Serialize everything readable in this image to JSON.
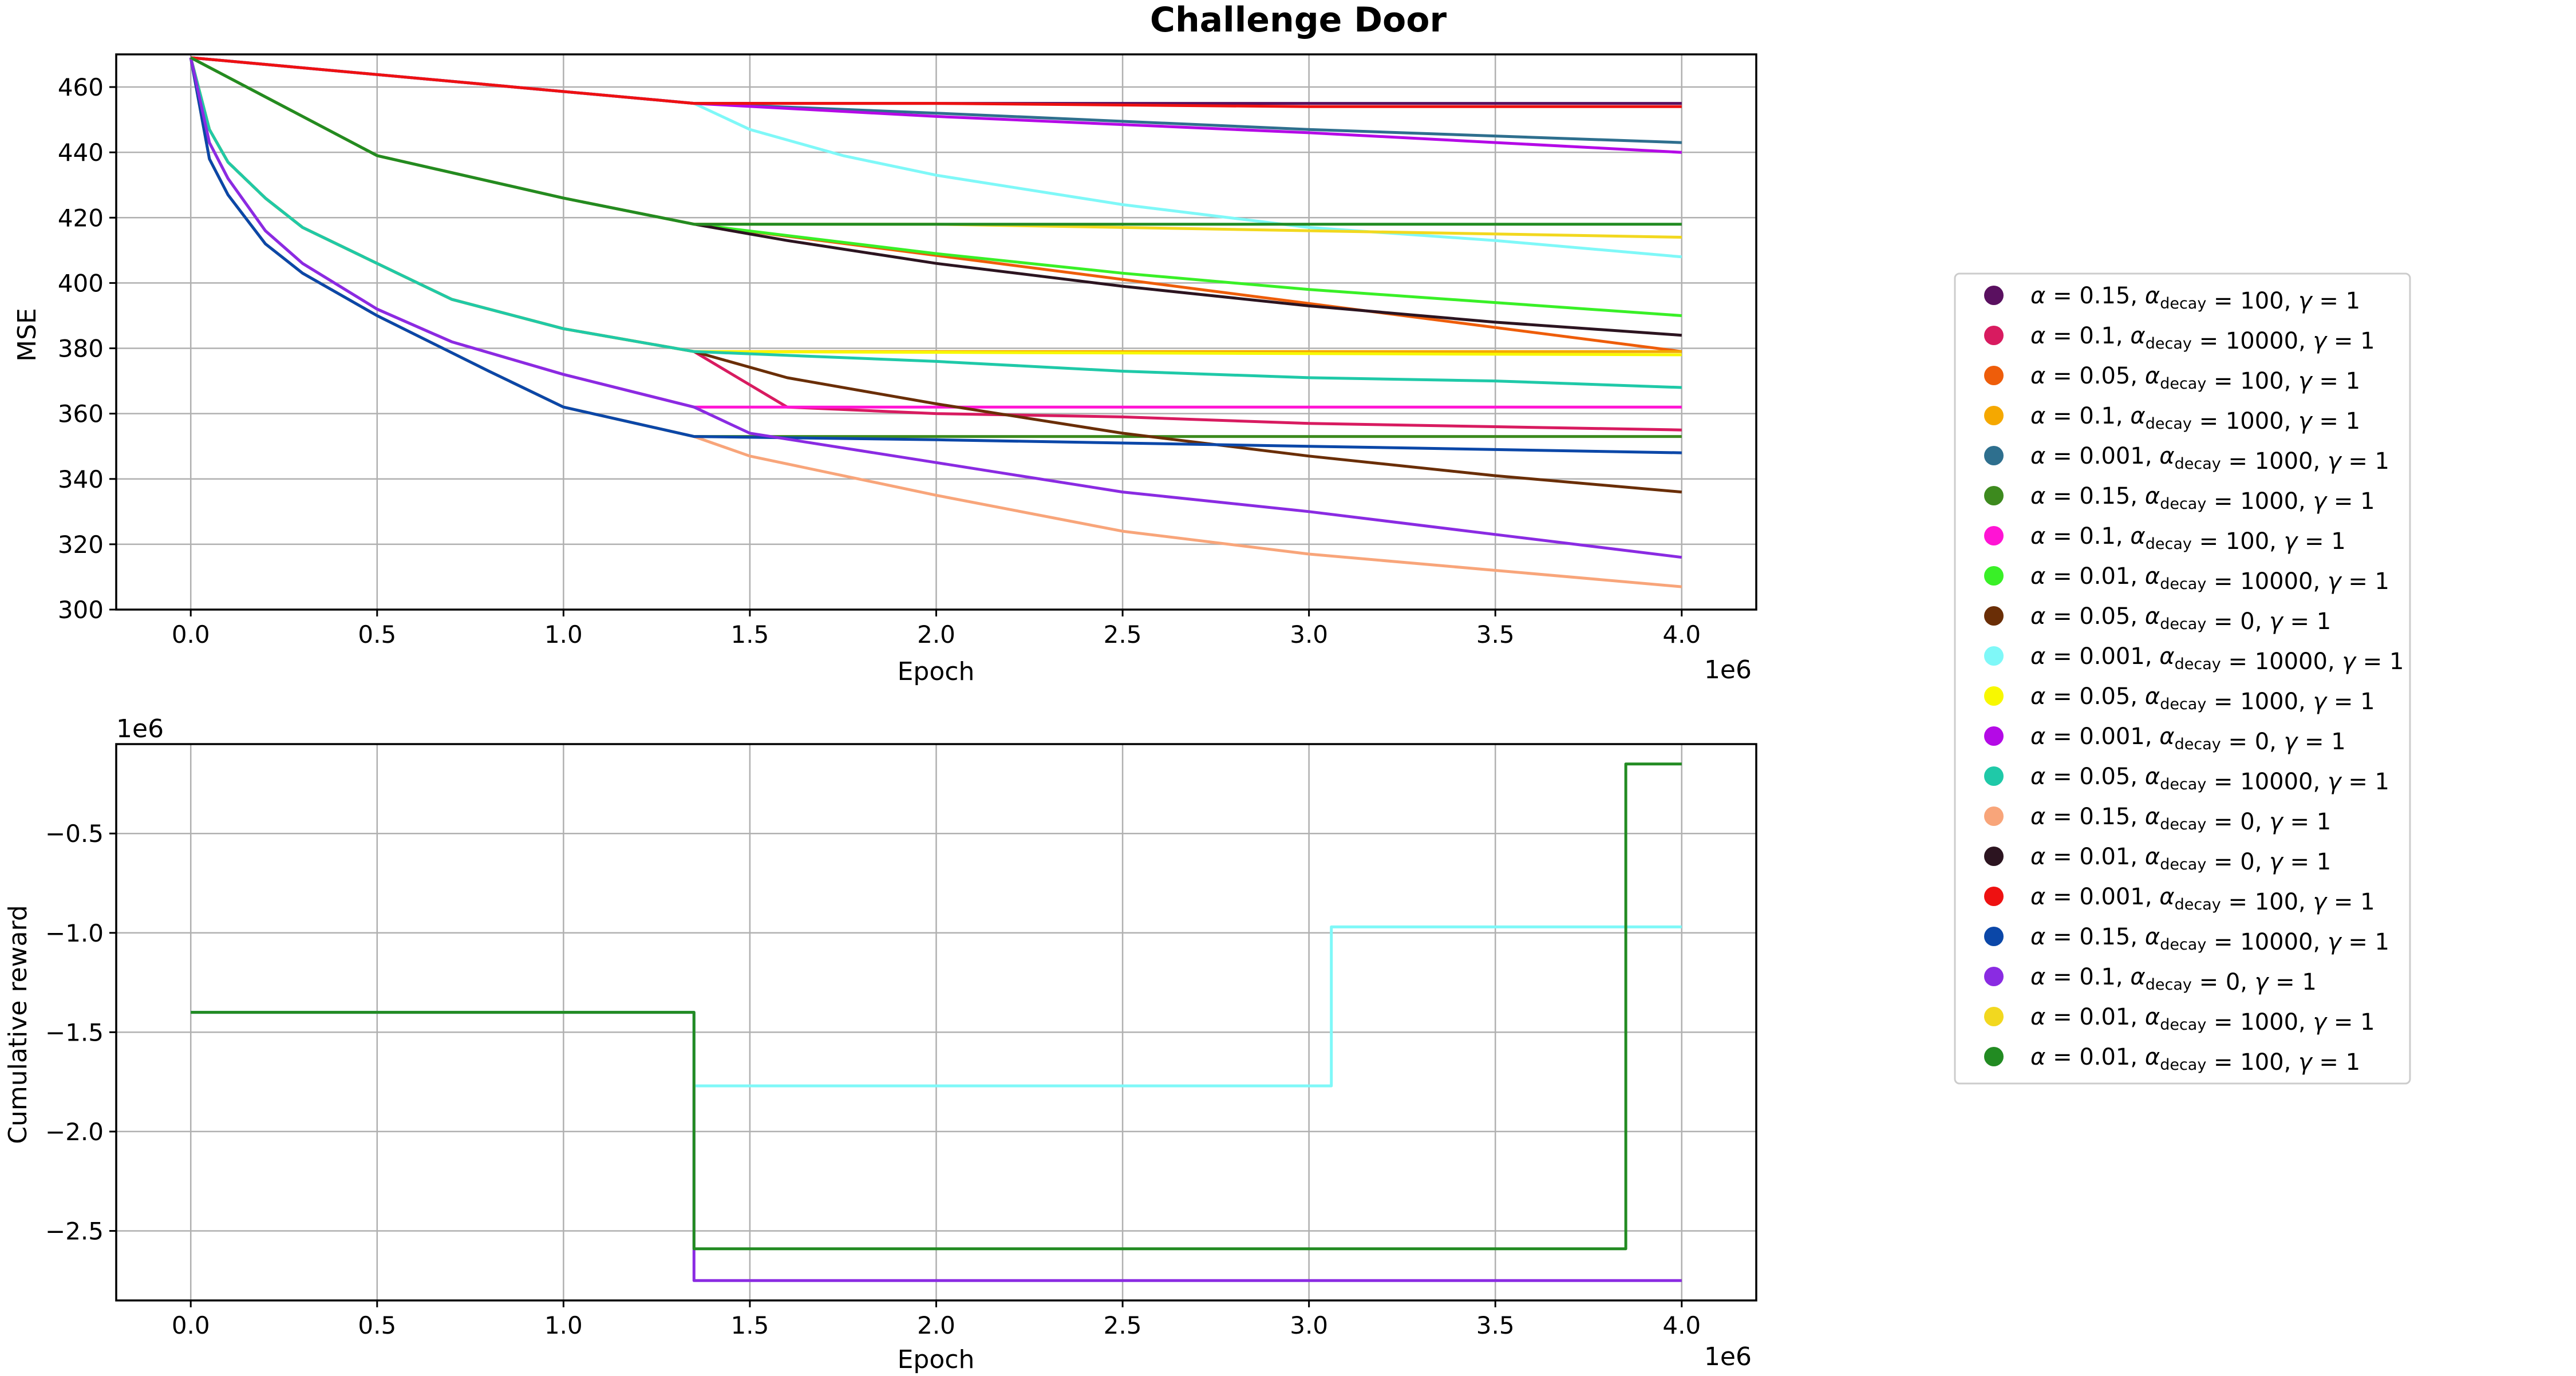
{
  "title": "Challenge Door",
  "chart_data": [
    {
      "type": "line",
      "xlabel": "Epoch",
      "ylabel": "MSE",
      "x_multiplier": "1e6",
      "xlim": [
        -0.2,
        4.2
      ],
      "ylim": [
        300,
        470
      ],
      "xticks": [
        0.0,
        0.5,
        1.0,
        1.5,
        2.0,
        2.5,
        3.0,
        3.5,
        4.0
      ],
      "xtick_labels": [
        "0.0",
        "0.5",
        "1.0",
        "1.5",
        "2.0",
        "2.5",
        "3.0",
        "3.5",
        "4.0"
      ],
      "yticks": [
        300,
        320,
        340,
        360,
        380,
        400,
        420,
        440,
        460
      ],
      "ytick_labels": [
        "300",
        "320",
        "340",
        "360",
        "380",
        "400",
        "420",
        "440",
        "460"
      ],
      "grid": true,
      "series": [
        {
          "name": "α=0.15, αdecay=100, γ=1",
          "color": "#5a1060",
          "x": [
            0,
            1.35,
            4.0
          ],
          "y": [
            469,
            455,
            455
          ]
        },
        {
          "name": "α=0.1, αdecay=10000, γ=1",
          "color": "#d81b60",
          "x": [
            0,
            0.05,
            0.1,
            0.2,
            0.3,
            0.5,
            0.7,
            1.0,
            1.35,
            1.6,
            2.0,
            2.5,
            3.0,
            3.5,
            4.0
          ],
          "y": [
            469,
            447,
            437,
            426,
            417,
            406,
            395,
            386,
            379,
            362,
            360,
            359,
            357,
            356,
            355
          ]
        },
        {
          "name": "α=0.05, αdecay=100, γ=1",
          "color": "#ee5d0a",
          "x": [
            0,
            0.5,
            1.0,
            1.35,
            4.0
          ],
          "y": [
            469,
            439,
            426,
            418,
            379
          ]
        },
        {
          "name": "α=0.1, αdecay=1000, γ=1",
          "color": "#f5a800",
          "x": [
            0,
            0.05,
            0.1,
            0.2,
            0.3,
            0.5,
            0.7,
            1.0,
            1.35,
            4.0
          ],
          "y": [
            469,
            447,
            437,
            426,
            417,
            406,
            395,
            386,
            379,
            379
          ]
        },
        {
          "name": "α=0.001, αdecay=1000, γ=1",
          "color": "#2e6f8e",
          "x": [
            0,
            1.35,
            2.0,
            3.0,
            4.0
          ],
          "y": [
            469,
            455,
            452,
            447,
            443
          ]
        },
        {
          "name": "α=0.15, αdecay=1000, γ=1",
          "color": "#3d8a1e",
          "x": [
            0,
            0.05,
            0.1,
            0.2,
            0.3,
            0.5,
            0.8,
            1.0,
            1.35,
            4.0
          ],
          "y": [
            469,
            438,
            427,
            412,
            403,
            390,
            373,
            362,
            353,
            353
          ]
        },
        {
          "name": "α=0.1, αdecay=100, γ=1",
          "color": "#ff14d4",
          "x": [
            0,
            0.05,
            0.1,
            0.2,
            0.3,
            0.5,
            0.7,
            1.0,
            1.35,
            4.0
          ],
          "y": [
            469,
            443,
            432,
            416,
            406,
            392,
            382,
            372,
            362,
            362
          ]
        },
        {
          "name": "α=0.01, αdecay=10000, γ=1",
          "color": "#39f027",
          "x": [
            0,
            0.5,
            1.0,
            1.35,
            2.0,
            2.5,
            3.0,
            3.5,
            4.0
          ],
          "y": [
            469,
            439,
            426,
            418,
            409,
            403,
            398,
            394,
            390
          ]
        },
        {
          "name": "α=0.05, αdecay=0, γ=1",
          "color": "#6a2e06",
          "x": [
            0,
            0.05,
            0.1,
            0.2,
            0.3,
            0.5,
            0.7,
            1.0,
            1.35,
            1.6,
            2.0,
            2.5,
            3.0,
            3.5,
            4.0
          ],
          "y": [
            469,
            447,
            437,
            426,
            417,
            406,
            395,
            386,
            379,
            371,
            363,
            354,
            347,
            341,
            336
          ]
        },
        {
          "name": "α=0.001, αdecay=10000, γ=1",
          "color": "#7ff8f8",
          "x": [
            0,
            1.35,
            1.5,
            1.75,
            2.0,
            2.5,
            3.0,
            3.5,
            4.0
          ],
          "y": [
            469,
            455,
            447,
            439,
            433,
            424,
            417,
            413,
            408
          ]
        },
        {
          "name": "α=0.05, αdecay=1000, γ=1",
          "color": "#f8f800",
          "x": [
            0,
            0.05,
            0.1,
            0.2,
            0.3,
            0.5,
            0.7,
            1.0,
            1.35,
            4.0
          ],
          "y": [
            469,
            447,
            437,
            426,
            417,
            406,
            395,
            386,
            379,
            378
          ]
        },
        {
          "name": "α=0.001, αdecay=0, γ=1",
          "color": "#b40ae6",
          "x": [
            0,
            1.35,
            2.0,
            3.0,
            4.0
          ],
          "y": [
            469,
            455,
            451,
            446,
            440
          ]
        },
        {
          "name": "α=0.05, αdecay=10000, γ=1",
          "color": "#1fc9a8",
          "x": [
            0,
            0.05,
            0.1,
            0.2,
            0.3,
            0.5,
            0.7,
            1.0,
            1.35,
            2.0,
            2.5,
            3.0,
            3.5,
            4.0
          ],
          "y": [
            469,
            447,
            437,
            426,
            417,
            406,
            395,
            386,
            379,
            376,
            373,
            371,
            370,
            368
          ]
        },
        {
          "name": "α=0.15, αdecay=0, γ=1",
          "color": "#f8a57a",
          "x": [
            0,
            0.05,
            0.1,
            0.2,
            0.3,
            0.5,
            0.8,
            1.0,
            1.35,
            1.5,
            2.0,
            2.5,
            3.0,
            3.5,
            4.0
          ],
          "y": [
            469,
            438,
            427,
            412,
            403,
            390,
            373,
            362,
            353,
            347,
            335,
            324,
            317,
            312,
            307
          ]
        },
        {
          "name": "α=0.01, αdecay=0, γ=1",
          "color": "#2c1420",
          "x": [
            0,
            0.5,
            1.0,
            1.35,
            1.6,
            2.0,
            2.5,
            3.0,
            3.5,
            4.0
          ],
          "y": [
            469,
            439,
            426,
            418,
            413,
            406,
            399,
            393,
            388,
            384
          ]
        },
        {
          "name": "α=0.001, αdecay=100, γ=1",
          "color": "#ee1111",
          "x": [
            0,
            1.35,
            2.0,
            3.0,
            4.0
          ],
          "y": [
            469,
            455,
            455,
            454,
            454
          ]
        },
        {
          "name": "α=0.15, αdecay=10000, γ=1",
          "color": "#0b47a8",
          "x": [
            0,
            0.05,
            0.1,
            0.2,
            0.3,
            0.5,
            0.8,
            1.0,
            1.35,
            2.0,
            3.0,
            4.0
          ],
          "y": [
            469,
            438,
            427,
            412,
            403,
            390,
            373,
            362,
            353,
            352,
            350,
            348
          ]
        },
        {
          "name": "α=0.1, αdecay=0, γ=1",
          "color": "#8a2be2",
          "x": [
            0,
            0.05,
            0.1,
            0.2,
            0.3,
            0.5,
            0.7,
            1.0,
            1.35,
            1.5,
            2.0,
            2.5,
            3.0,
            3.5,
            4.0
          ],
          "y": [
            469,
            443,
            432,
            416,
            406,
            392,
            382,
            372,
            362,
            354,
            345,
            336,
            330,
            323,
            316
          ]
        },
        {
          "name": "α=0.01, αdecay=1000, γ=1",
          "color": "#f2d81f",
          "x": [
            0,
            0.5,
            1.0,
            1.35,
            2.0,
            3.0,
            4.0
          ],
          "y": [
            469,
            439,
            426,
            418,
            418,
            416,
            414
          ]
        },
        {
          "name": "α=0.01, αdecay=100, γ=1",
          "color": "#228b22",
          "x": [
            0,
            0.5,
            1.0,
            1.35,
            4.0
          ],
          "y": [
            469,
            439,
            426,
            418,
            418
          ]
        }
      ]
    },
    {
      "type": "line",
      "xlabel": "Epoch",
      "ylabel": "Cumulative reward",
      "x_multiplier": "1e6",
      "y_multiplier": "1e6",
      "xlim": [
        -0.2,
        4.2
      ],
      "ylim": [
        -2.85,
        -0.05
      ],
      "xticks": [
        0.0,
        0.5,
        1.0,
        1.5,
        2.0,
        2.5,
        3.0,
        3.5,
        4.0
      ],
      "xtick_labels": [
        "0.0",
        "0.5",
        "1.0",
        "1.5",
        "2.0",
        "2.5",
        "3.0",
        "3.5",
        "4.0"
      ],
      "yticks": [
        -2.5,
        -2.0,
        -1.5,
        -1.0,
        -0.5
      ],
      "ytick_labels": [
        "−2.5",
        "−2.0",
        "−1.5",
        "−1.0",
        "−0.5"
      ],
      "grid": true,
      "series": [
        {
          "name": "α=0.1, αdecay=0, γ=1",
          "color": "#8a2be2",
          "x": [
            0,
            1.35,
            1.35,
            4.0
          ],
          "y": [
            -1.4,
            -1.4,
            -2.75,
            -2.75
          ]
        },
        {
          "name": "α=0.001, αdecay=10000, γ=1",
          "color": "#7ff8f8",
          "x": [
            0,
            1.35,
            1.35,
            3.06,
            3.06,
            4.0
          ],
          "y": [
            -1.4,
            -1.4,
            -1.77,
            -1.77,
            -0.97,
            -0.97
          ]
        },
        {
          "name": "α=0.01, αdecay=100, γ=1",
          "color": "#228b22",
          "x": [
            0,
            1.35,
            1.35,
            3.85,
            3.85,
            4.0
          ],
          "y": [
            -1.4,
            -1.4,
            -2.59,
            -2.59,
            -0.15,
            -0.15
          ]
        }
      ]
    }
  ],
  "legend": {
    "placement": "right",
    "items": [
      {
        "alpha": "0.15",
        "decay": "100",
        "gamma": "1",
        "color": "#5a1060"
      },
      {
        "alpha": "0.1",
        "decay": "10000",
        "gamma": "1",
        "color": "#d81b60"
      },
      {
        "alpha": "0.05",
        "decay": "100",
        "gamma": "1",
        "color": "#ee5d0a"
      },
      {
        "alpha": "0.1",
        "decay": "1000",
        "gamma": "1",
        "color": "#f5a800"
      },
      {
        "alpha": "0.001",
        "decay": "1000",
        "gamma": "1",
        "color": "#2e6f8e"
      },
      {
        "alpha": "0.15",
        "decay": "1000",
        "gamma": "1",
        "color": "#3d8a1e"
      },
      {
        "alpha": "0.1",
        "decay": "100",
        "gamma": "1",
        "color": "#ff14d4"
      },
      {
        "alpha": "0.01",
        "decay": "10000",
        "gamma": "1",
        "color": "#39f027"
      },
      {
        "alpha": "0.05",
        "decay": "0",
        "gamma": "1",
        "color": "#6a2e06"
      },
      {
        "alpha": "0.001",
        "decay": "10000",
        "gamma": "1",
        "color": "#7ff8f8"
      },
      {
        "alpha": "0.05",
        "decay": "1000",
        "gamma": "1",
        "color": "#f8f800"
      },
      {
        "alpha": "0.001",
        "decay": "0",
        "gamma": "1",
        "color": "#b40ae6"
      },
      {
        "alpha": "0.05",
        "decay": "10000",
        "gamma": "1",
        "color": "#1fc9a8"
      },
      {
        "alpha": "0.15",
        "decay": "0",
        "gamma": "1",
        "color": "#f8a57a"
      },
      {
        "alpha": "0.01",
        "decay": "0",
        "gamma": "1",
        "color": "#2c1420"
      },
      {
        "alpha": "0.001",
        "decay": "100",
        "gamma": "1",
        "color": "#ee1111"
      },
      {
        "alpha": "0.15",
        "decay": "10000",
        "gamma": "1",
        "color": "#0b47a8"
      },
      {
        "alpha": "0.1",
        "decay": "0",
        "gamma": "1",
        "color": "#8a2be2"
      },
      {
        "alpha": "0.01",
        "decay": "1000",
        "gamma": "1",
        "color": "#f2d81f"
      },
      {
        "alpha": "0.01",
        "decay": "100",
        "gamma": "1",
        "color": "#228b22"
      }
    ]
  }
}
